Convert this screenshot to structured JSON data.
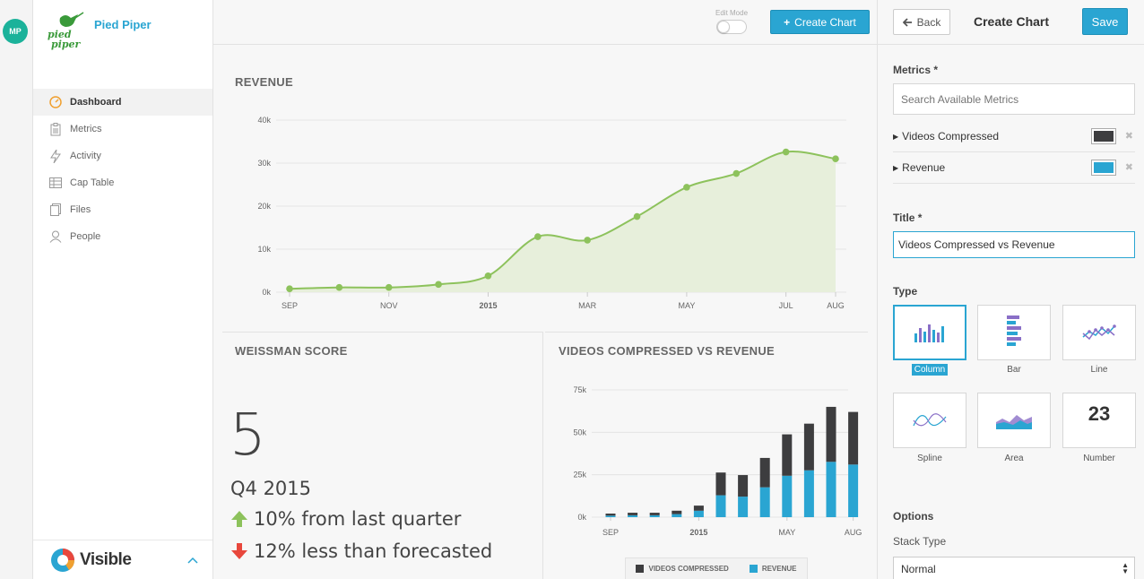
{
  "rail": {
    "avatar_initials": "MP"
  },
  "sidebar": {
    "company_name": "Pied Piper",
    "logo_text": "pied piper",
    "items": [
      {
        "label": "Dashboard",
        "icon": "dashboard-gauge-icon",
        "active": true
      },
      {
        "label": "Metrics",
        "icon": "clipboard-icon",
        "active": false
      },
      {
        "label": "Activity",
        "icon": "lightning-icon",
        "active": false
      },
      {
        "label": "Cap Table",
        "icon": "table-grid-icon",
        "active": false
      },
      {
        "label": "Files",
        "icon": "files-icon",
        "active": false
      },
      {
        "label": "People",
        "icon": "person-icon",
        "active": false
      }
    ],
    "footer_brand": "Visible"
  },
  "topbar": {
    "edit_mode_label": "Edit Mode",
    "edit_mode_on": false,
    "create_chart_label": "Create Chart"
  },
  "revenue_card": {
    "title": "REVENUE"
  },
  "weissman_card": {
    "title": "WEISSMAN SCORE",
    "score": "5",
    "period": "Q4 2015",
    "stat_up": "10% from last quarter",
    "stat_down": "12% less than forecasted"
  },
  "vcr_card": {
    "title": "VIDEOS COMPRESSED VS REVENUE",
    "legend": [
      "VIDEOS COMPRESSED",
      "REVENUE"
    ]
  },
  "chart_data": [
    {
      "type": "area",
      "title": "REVENUE",
      "ylim": [
        0,
        40000
      ],
      "yticks": [
        "0k",
        "10k",
        "20k",
        "30k",
        "40k"
      ],
      "xticks": [
        {
          "x": 0,
          "label": "SEP"
        },
        {
          "x": 2,
          "label": "NOV"
        },
        {
          "x": 4,
          "label": "2015"
        },
        {
          "x": 6,
          "label": "MAR"
        },
        {
          "x": 8,
          "label": "MAY"
        },
        {
          "x": 10,
          "label": "JUL"
        },
        {
          "x": 11,
          "label": "AUG"
        }
      ],
      "x": [
        0,
        1,
        2,
        3,
        4,
        5,
        6,
        7,
        8,
        9,
        10,
        11
      ],
      "values": [
        800,
        1100,
        1100,
        1800,
        3800,
        12900,
        12100,
        17600,
        24400,
        27600,
        32600,
        31000
      ],
      "color": "#8dc25c",
      "fill": "#e7efdb",
      "grid": true
    },
    {
      "type": "bar",
      "stacked": true,
      "title": "VIDEOS COMPRESSED VS REVENUE",
      "ylim": [
        0,
        75000
      ],
      "yticks": [
        "0k",
        "25k",
        "50k",
        "75k"
      ],
      "xticks": [
        {
          "x": 0,
          "label": "SEP"
        },
        {
          "x": 4,
          "label": "2015"
        },
        {
          "x": 8,
          "label": "MAY"
        },
        {
          "x": 11,
          "label": "AUG"
        }
      ],
      "series": [
        {
          "name": "REVENUE",
          "color": "#2aa5d2",
          "values": [
            900,
            1100,
            1100,
            1800,
            3800,
            12900,
            12100,
            17600,
            24400,
            27600,
            32600,
            31000
          ]
        },
        {
          "name": "VIDEOS COMPRESSED",
          "color": "#3d3d3f",
          "values": [
            1200,
            1500,
            1500,
            2000,
            3000,
            13400,
            12700,
            17300,
            24400,
            27500,
            32400,
            31000
          ]
        }
      ],
      "legend": "bottom",
      "grid": true
    }
  ],
  "panel": {
    "back_label": "Back",
    "title": "Create Chart",
    "save_label": "Save",
    "metrics_label": "Metrics *",
    "search_placeholder": "Search Available Metrics",
    "metrics": [
      {
        "name": "Videos Compressed",
        "color": "#3d3d3f"
      },
      {
        "name": "Revenue",
        "color": "#2aa5d2"
      }
    ],
    "title_label": "Title *",
    "title_value": "Videos Compressed vs Revenue",
    "type_label": "Type",
    "types": [
      {
        "label": "Column",
        "icon": "column-chart-icon",
        "selected": true
      },
      {
        "label": "Bar",
        "icon": "bar-chart-icon",
        "selected": false
      },
      {
        "label": "Line",
        "icon": "line-chart-icon",
        "selected": false
      },
      {
        "label": "Spline",
        "icon": "spline-chart-icon",
        "selected": false
      },
      {
        "label": "Area",
        "icon": "area-chart-icon",
        "selected": false
      },
      {
        "label": "Number",
        "icon": "number-icon",
        "selected": false,
        "glyph": "23"
      }
    ],
    "options_label": "Options",
    "stack_type_label": "Stack Type",
    "stack_type_value": "Normal"
  }
}
